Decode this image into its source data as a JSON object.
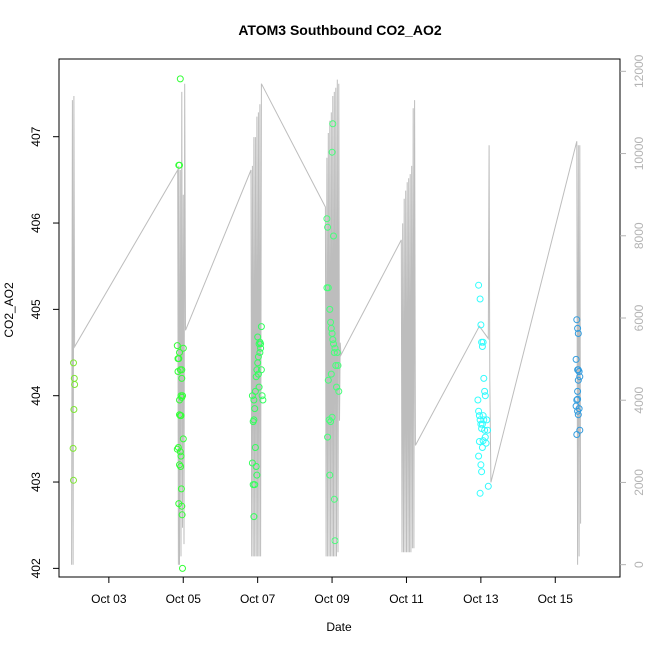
{
  "chart_data": {
    "type": "scatter",
    "title": "ATOM3 Southbound CO2_AO2",
    "xlabel": "Date",
    "ylabel": "CO2_AO2",
    "y_right_label": "",
    "x_range_days": [
      -0.34,
      14.74
    ],
    "x_ticks": [
      {
        "day": 1,
        "label": "Oct 03"
      },
      {
        "day": 3,
        "label": "Oct 05"
      },
      {
        "day": 5,
        "label": "Oct 07"
      },
      {
        "day": 7,
        "label": "Oct 09"
      },
      {
        "day": 9,
        "label": "Oct 11"
      },
      {
        "day": 11,
        "label": "Oct 13"
      },
      {
        "day": 13,
        "label": "Oct 15"
      }
    ],
    "x_origin_date": "Oct 02",
    "ylim": [
      401.9,
      407.9
    ],
    "y_ticks": [
      402,
      403,
      404,
      405,
      406,
      407
    ],
    "y_right_lim": [
      -300,
      12300
    ],
    "y_right_ticks": [
      0,
      2000,
      4000,
      6000,
      8000,
      10000,
      12000
    ],
    "grid": false,
    "colors": {
      "points_gradient": [
        "#7fe832",
        "#33ff33",
        "#33ff66",
        "#55ff88",
        "#33ffff",
        "#3399dd"
      ],
      "altitude_line": "#bdbdbd",
      "axis": "#000000"
    },
    "altitude_series": {
      "name": "",
      "points": [
        [
          0.0,
          0
        ],
        [
          0.02,
          11300
        ],
        [
          0.04,
          0
        ],
        [
          0.06,
          11400
        ],
        [
          0.08,
          5300
        ],
        [
          2.85,
          9600
        ],
        [
          2.87,
          0
        ],
        [
          2.88,
          9700
        ],
        [
          2.9,
          0
        ],
        [
          2.92,
          9600
        ],
        [
          2.94,
          200
        ],
        [
          2.96,
          11500
        ],
        [
          2.98,
          900
        ],
        [
          3.0,
          9000
        ],
        [
          3.02,
          500
        ],
        [
          3.04,
          11700
        ],
        [
          3.06,
          5700
        ],
        [
          4.82,
          9600
        ],
        [
          4.84,
          200
        ],
        [
          4.86,
          9700
        ],
        [
          4.88,
          200
        ],
        [
          4.9,
          10400
        ],
        [
          4.92,
          200
        ],
        [
          4.94,
          10400
        ],
        [
          4.96,
          200
        ],
        [
          4.98,
          10900
        ],
        [
          5.0,
          200
        ],
        [
          5.02,
          11000
        ],
        [
          5.04,
          200
        ],
        [
          5.06,
          11200
        ],
        [
          5.08,
          200
        ],
        [
          5.1,
          11700
        ],
        [
          6.82,
          8700
        ],
        [
          6.84,
          200
        ],
        [
          6.86,
          9900
        ],
        [
          6.88,
          200
        ],
        [
          6.9,
          10500
        ],
        [
          6.92,
          200
        ],
        [
          6.94,
          10800
        ],
        [
          6.96,
          200
        ],
        [
          6.98,
          11000
        ],
        [
          7.0,
          200
        ],
        [
          7.02,
          11400
        ],
        [
          7.04,
          200
        ],
        [
          7.06,
          11500
        ],
        [
          7.08,
          200
        ],
        [
          7.1,
          11600
        ],
        [
          7.12,
          200
        ],
        [
          7.14,
          11800
        ],
        [
          7.16,
          300
        ],
        [
          7.18,
          11700
        ],
        [
          7.2,
          3500
        ],
        [
          7.22,
          5400
        ],
        [
          7.24,
          5100
        ],
        [
          8.86,
          7900
        ],
        [
          8.88,
          300
        ],
        [
          8.9,
          8300
        ],
        [
          8.92,
          300
        ],
        [
          8.94,
          8900
        ],
        [
          8.96,
          300
        ],
        [
          8.98,
          9100
        ],
        [
          9.0,
          300
        ],
        [
          9.02,
          9300
        ],
        [
          9.04,
          300
        ],
        [
          9.06,
          9400
        ],
        [
          9.08,
          300
        ],
        [
          9.1,
          9500
        ],
        [
          9.12,
          300
        ],
        [
          9.14,
          9700
        ],
        [
          9.16,
          400
        ],
        [
          9.18,
          11100
        ],
        [
          9.2,
          400
        ],
        [
          9.22,
          11300
        ],
        [
          9.24,
          2900
        ],
        [
          10.96,
          5800
        ],
        [
          11.2,
          5500
        ],
        [
          11.22,
          10200
        ],
        [
          11.24,
          4500
        ],
        [
          11.27,
          2000
        ],
        [
          13.58,
          10300
        ],
        [
          13.6,
          0
        ],
        [
          13.62,
          10200
        ],
        [
          13.64,
          200
        ],
        [
          13.66,
          10200
        ],
        [
          13.68,
          1000
        ]
      ]
    },
    "series": [
      {
        "name": "",
        "points": [
          [
            0.05,
            404.38
          ],
          [
            0.07,
            404.2
          ],
          [
            0.08,
            404.13
          ],
          [
            0.06,
            403.84
          ],
          [
            0.04,
            403.39
          ],
          [
            0.05,
            403.02
          ],
          [
            2.84,
            404.58
          ],
          [
            2.86,
            404.43
          ],
          [
            2.88,
            404.43
          ],
          [
            2.9,
            404.5
          ],
          [
            2.92,
            404.3
          ],
          [
            2.86,
            404.28
          ],
          [
            2.9,
            403.95
          ],
          [
            2.94,
            404.0
          ],
          [
            2.96,
            403.98
          ],
          [
            2.98,
            404.0
          ],
          [
            2.87,
            403.4
          ],
          [
            2.84,
            403.38
          ],
          [
            2.92,
            403.35
          ],
          [
            2.94,
            403.3
          ],
          [
            2.9,
            403.2
          ],
          [
            2.93,
            403.18
          ],
          [
            2.95,
            402.92
          ],
          [
            2.88,
            402.75
          ],
          [
            2.96,
            402.72
          ],
          [
            2.97,
            402.62
          ],
          [
            2.98,
            402.0
          ],
          [
            3.0,
            404.55
          ],
          [
            2.96,
            404.3
          ],
          [
            2.94,
            403.77
          ],
          [
            2.92,
            403.77
          ],
          [
            2.9,
            403.78
          ],
          [
            2.88,
            406.67
          ],
          [
            2.9,
            406.67
          ],
          [
            2.92,
            407.67
          ],
          [
            2.96,
            404.2
          ],
          [
            3.0,
            403.5
          ],
          [
            4.86,
            404.0
          ],
          [
            4.9,
            403.95
          ],
          [
            4.94,
            404.05
          ],
          [
            4.96,
            404.22
          ],
          [
            4.98,
            404.3
          ],
          [
            5.0,
            404.38
          ],
          [
            5.02,
            404.45
          ],
          [
            5.04,
            404.6
          ],
          [
            5.06,
            404.62
          ],
          [
            5.08,
            404.55
          ],
          [
            5.1,
            404.8
          ],
          [
            4.88,
            403.7
          ],
          [
            4.9,
            403.72
          ],
          [
            4.92,
            403.85
          ],
          [
            4.94,
            403.4
          ],
          [
            4.96,
            403.18
          ],
          [
            4.98,
            403.08
          ],
          [
            4.86,
            403.22
          ],
          [
            4.88,
            402.97
          ],
          [
            4.92,
            402.97
          ],
          [
            4.9,
            402.6
          ],
          [
            5.0,
            404.68
          ],
          [
            5.02,
            404.25
          ],
          [
            5.04,
            404.1
          ],
          [
            5.06,
            404.5
          ],
          [
            5.08,
            404.6
          ],
          [
            5.1,
            404.3
          ],
          [
            5.12,
            404.0
          ],
          [
            5.14,
            403.95
          ],
          [
            6.86,
            405.25
          ],
          [
            6.9,
            405.25
          ],
          [
            6.94,
            405.0
          ],
          [
            6.96,
            404.85
          ],
          [
            6.98,
            404.78
          ],
          [
            7.0,
            404.72
          ],
          [
            7.02,
            404.65
          ],
          [
            7.04,
            404.6
          ],
          [
            7.06,
            404.5
          ],
          [
            7.08,
            404.55
          ],
          [
            7.1,
            404.35
          ],
          [
            7.12,
            404.1
          ],
          [
            6.88,
            405.95
          ],
          [
            6.86,
            406.05
          ],
          [
            7.0,
            406.82
          ],
          [
            7.02,
            407.15
          ],
          [
            7.04,
            405.85
          ],
          [
            6.9,
            404.18
          ],
          [
            6.92,
            403.72
          ],
          [
            6.96,
            403.7
          ],
          [
            7.0,
            403.75
          ],
          [
            6.88,
            403.52
          ],
          [
            6.94,
            403.08
          ],
          [
            7.06,
            402.8
          ],
          [
            7.08,
            402.32
          ],
          [
            6.98,
            404.25
          ],
          [
            7.14,
            404.5
          ],
          [
            7.16,
            404.35
          ],
          [
            7.18,
            404.05
          ],
          [
            10.94,
            405.28
          ],
          [
            10.98,
            405.12
          ],
          [
            11.0,
            404.82
          ],
          [
            11.02,
            404.62
          ],
          [
            11.04,
            404.57
          ],
          [
            11.06,
            404.62
          ],
          [
            11.08,
            404.2
          ],
          [
            11.1,
            404.05
          ],
          [
            11.12,
            404.0
          ],
          [
            10.92,
            403.95
          ],
          [
            10.94,
            403.82
          ],
          [
            10.96,
            403.77
          ],
          [
            10.98,
            403.72
          ],
          [
            11.0,
            403.67
          ],
          [
            11.02,
            403.62
          ],
          [
            11.04,
            403.67
          ],
          [
            11.06,
            403.77
          ],
          [
            11.08,
            403.72
          ],
          [
            11.1,
            403.6
          ],
          [
            11.12,
            403.52
          ],
          [
            11.14,
            403.45
          ],
          [
            11.16,
            403.72
          ],
          [
            11.18,
            403.6
          ],
          [
            10.96,
            403.47
          ],
          [
            10.94,
            403.3
          ],
          [
            11.0,
            403.2
          ],
          [
            11.02,
            403.12
          ],
          [
            10.98,
            402.87
          ],
          [
            11.2,
            402.95
          ],
          [
            11.04,
            403.4
          ],
          [
            11.06,
            403.48
          ],
          [
            13.58,
            404.88
          ],
          [
            13.6,
            404.78
          ],
          [
            13.62,
            404.72
          ],
          [
            13.56,
            404.42
          ],
          [
            13.6,
            404.3
          ],
          [
            13.64,
            404.28
          ],
          [
            13.66,
            404.22
          ],
          [
            13.62,
            404.18
          ],
          [
            13.6,
            404.05
          ],
          [
            13.58,
            403.95
          ],
          [
            13.56,
            403.88
          ],
          [
            13.6,
            403.82
          ],
          [
            13.62,
            403.78
          ],
          [
            13.64,
            403.85
          ],
          [
            13.66,
            403.6
          ],
          [
            13.58,
            403.55
          ],
          [
            13.6,
            403.96
          ],
          [
            13.62,
            404.3
          ]
        ]
      }
    ]
  }
}
